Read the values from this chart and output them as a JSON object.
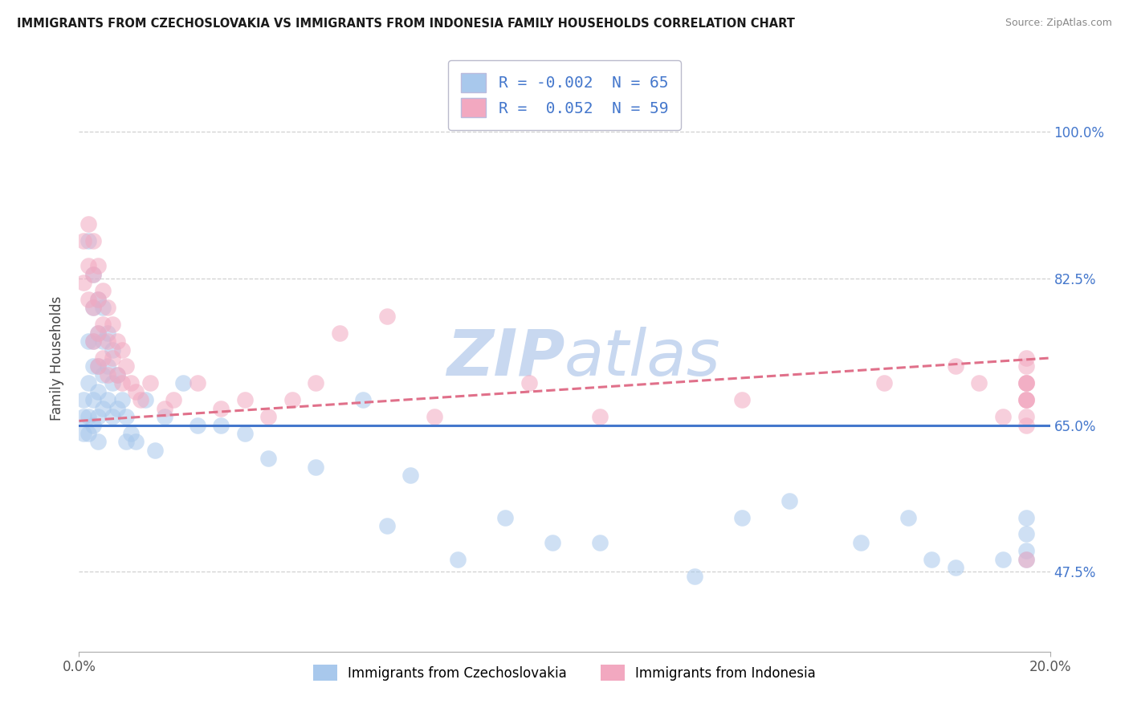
{
  "title": "IMMIGRANTS FROM CZECHOSLOVAKIA VS IMMIGRANTS FROM INDONESIA FAMILY HOUSEHOLDS CORRELATION CHART",
  "source": "Source: ZipAtlas.com",
  "ylabel": "Family Households",
  "xlim": [
    0.0,
    0.205
  ],
  "ylim": [
    0.38,
    1.08
  ],
  "yticks": [
    0.475,
    0.65,
    0.825,
    1.0
  ],
  "ytick_labels": [
    "47.5%",
    "65.0%",
    "82.5%",
    "100.0%"
  ],
  "xtick_left_label": "0.0%",
  "xtick_right_label": "20.0%",
  "legend_R1": "-0.002",
  "legend_N1": "65",
  "legend_R2": " 0.052",
  "legend_N2": "59",
  "color_blue": "#A8C8EC",
  "color_pink": "#F2A8C0",
  "color_blue_line": "#4477CC",
  "color_pink_line": "#E0708A",
  "background_color": "#ffffff",
  "grid_color": "#d0d0d0",
  "watermark_color": "#C8D8F0",
  "blue_line_y0": 0.65,
  "blue_line_y1": 0.65,
  "pink_line_y0": 0.655,
  "pink_line_y1": 0.73,
  "blue_scatter_x": [
    0.001,
    0.001,
    0.001,
    0.002,
    0.002,
    0.002,
    0.002,
    0.002,
    0.003,
    0.003,
    0.003,
    0.003,
    0.003,
    0.003,
    0.004,
    0.004,
    0.004,
    0.004,
    0.004,
    0.004,
    0.005,
    0.005,
    0.005,
    0.005,
    0.006,
    0.006,
    0.006,
    0.007,
    0.007,
    0.007,
    0.008,
    0.008,
    0.009,
    0.01,
    0.01,
    0.011,
    0.012,
    0.014,
    0.016,
    0.018,
    0.022,
    0.025,
    0.03,
    0.035,
    0.04,
    0.05,
    0.06,
    0.065,
    0.07,
    0.08,
    0.09,
    0.1,
    0.11,
    0.13,
    0.14,
    0.15,
    0.165,
    0.175,
    0.18,
    0.185,
    0.195,
    0.2,
    0.2,
    0.2,
    0.2
  ],
  "blue_scatter_y": [
    0.66,
    0.64,
    0.68,
    0.87,
    0.75,
    0.7,
    0.66,
    0.64,
    0.83,
    0.79,
    0.75,
    0.72,
    0.68,
    0.65,
    0.8,
    0.76,
    0.72,
    0.69,
    0.66,
    0.63,
    0.79,
    0.75,
    0.71,
    0.67,
    0.76,
    0.72,
    0.68,
    0.74,
    0.7,
    0.66,
    0.71,
    0.67,
    0.68,
    0.66,
    0.63,
    0.64,
    0.63,
    0.68,
    0.62,
    0.66,
    0.7,
    0.65,
    0.65,
    0.64,
    0.61,
    0.6,
    0.68,
    0.53,
    0.59,
    0.49,
    0.54,
    0.51,
    0.51,
    0.47,
    0.54,
    0.56,
    0.51,
    0.54,
    0.49,
    0.48,
    0.49,
    0.5,
    0.52,
    0.54,
    0.49
  ],
  "pink_scatter_x": [
    0.001,
    0.001,
    0.002,
    0.002,
    0.002,
    0.003,
    0.003,
    0.003,
    0.003,
    0.004,
    0.004,
    0.004,
    0.004,
    0.005,
    0.005,
    0.005,
    0.006,
    0.006,
    0.006,
    0.007,
    0.007,
    0.008,
    0.008,
    0.009,
    0.009,
    0.01,
    0.011,
    0.012,
    0.013,
    0.015,
    0.018,
    0.02,
    0.025,
    0.03,
    0.035,
    0.04,
    0.045,
    0.05,
    0.055,
    0.065,
    0.075,
    0.095,
    0.11,
    0.14,
    0.17,
    0.185,
    0.19,
    0.195,
    0.2,
    0.2,
    0.2,
    0.2,
    0.2,
    0.2,
    0.2,
    0.2,
    0.2,
    0.2,
    0.2
  ],
  "pink_scatter_y": [
    0.87,
    0.82,
    0.89,
    0.84,
    0.8,
    0.87,
    0.83,
    0.79,
    0.75,
    0.84,
    0.8,
    0.76,
    0.72,
    0.81,
    0.77,
    0.73,
    0.79,
    0.75,
    0.71,
    0.77,
    0.73,
    0.75,
    0.71,
    0.74,
    0.7,
    0.72,
    0.7,
    0.69,
    0.68,
    0.7,
    0.67,
    0.68,
    0.7,
    0.67,
    0.68,
    0.66,
    0.68,
    0.7,
    0.76,
    0.78,
    0.66,
    0.7,
    0.66,
    0.68,
    0.7,
    0.72,
    0.7,
    0.66,
    0.68,
    0.7,
    0.65,
    0.68,
    0.7,
    0.72,
    0.73,
    0.7,
    0.68,
    0.66,
    0.49
  ]
}
